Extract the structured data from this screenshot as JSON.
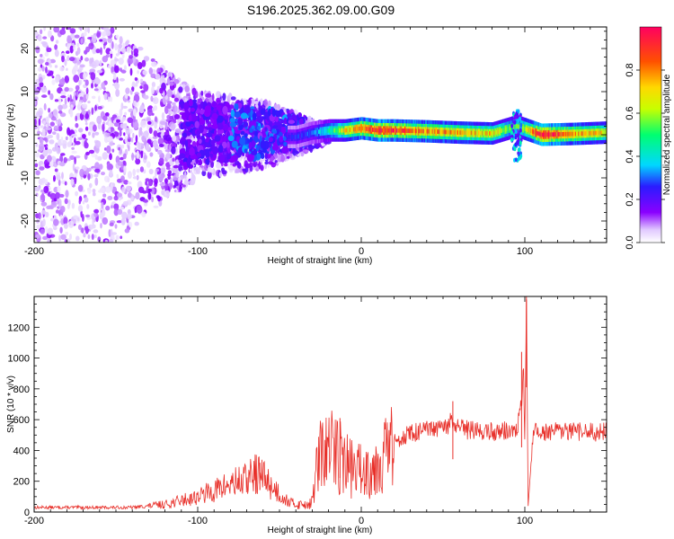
{
  "title": "S196.2025.362.09.00.G09",
  "chart_data": [
    {
      "type": "heatmap",
      "title": "S196.2025.362.09.00.G09",
      "xlabel": "Height of straight line (km)",
      "ylabel": "Frequency (Hz)",
      "xlim": [
        -200,
        150
      ],
      "ylim": [
        -25,
        25
      ],
      "xticks": [
        -200,
        -100,
        0,
        100
      ],
      "yticks": [
        -20,
        -10,
        0,
        10,
        20
      ],
      "colorbar": {
        "label": "Normalized spectral amplitude",
        "range": [
          0,
          1
        ],
        "ticks": [
          0.0,
          0.2,
          0.4,
          0.6,
          0.8
        ]
      },
      "ridge_profile": [
        {
          "height": -40,
          "freq": -0.5,
          "amp": 0.25
        },
        {
          "height": -30,
          "freq": 0.5,
          "amp": 0.3
        },
        {
          "height": -20,
          "freq": 1.0,
          "amp": 0.45
        },
        {
          "height": -10,
          "freq": 1.0,
          "amp": 0.7
        },
        {
          "height": 0,
          "freq": 1.5,
          "amp": 0.85
        },
        {
          "height": 10,
          "freq": 1.0,
          "amp": 0.95
        },
        {
          "height": 20,
          "freq": 1.0,
          "amp": 0.9
        },
        {
          "height": 40,
          "freq": 0.8,
          "amp": 0.8
        },
        {
          "height": 60,
          "freq": 0.5,
          "amp": 0.75
        },
        {
          "height": 80,
          "freq": 0.3,
          "amp": 0.7
        },
        {
          "height": 95,
          "freq": 2.0,
          "amp": 0.5
        },
        {
          "height": 110,
          "freq": 0.0,
          "amp": 1.0
        },
        {
          "height": 130,
          "freq": 0.2,
          "amp": 0.8
        },
        {
          "height": 150,
          "freq": 0.5,
          "amp": 0.7
        }
      ],
      "noise_extent": [
        {
          "height": -200,
          "freq_spread": 25,
          "amp": 0.1
        },
        {
          "height": -150,
          "freq_spread": 25,
          "amp": 0.1
        },
        {
          "height": -120,
          "freq_spread": 15,
          "amp": 0.12
        },
        {
          "height": -100,
          "freq_spread": 10,
          "amp": 0.15
        },
        {
          "height": -60,
          "freq_spread": 8,
          "amp": 0.15
        },
        {
          "height": -40,
          "freq_spread": 5,
          "amp": 0.18
        },
        {
          "height": -20,
          "freq_spread": 2,
          "amp": 0.2
        }
      ]
    },
    {
      "type": "line",
      "xlabel": "Height of straight line (km)",
      "ylabel": "SNR (10 * v/v)",
      "xlim": [
        -200,
        150
      ],
      "ylim": [
        0,
        1400
      ],
      "xticks": [
        -200,
        -100,
        0,
        100
      ],
      "yticks": [
        0,
        200,
        400,
        600,
        800,
        1000,
        1200
      ],
      "series": [
        {
          "name": "SNR",
          "color": "#e8302a",
          "x": [
            -200,
            -180,
            -160,
            -140,
            -120,
            -100,
            -90,
            -80,
            -70,
            -65,
            -60,
            -55,
            -50,
            -45,
            -40,
            -35,
            -30,
            -28,
            -25,
            -20,
            -15,
            -10,
            -5,
            0,
            5,
            10,
            15,
            20,
            25,
            30,
            40,
            50,
            55,
            60,
            70,
            80,
            90,
            95,
            98,
            99,
            100,
            101,
            102,
            105,
            110,
            120,
            130,
            140,
            150
          ],
          "y": [
            30,
            30,
            30,
            30,
            50,
            100,
            140,
            180,
            210,
            250,
            230,
            170,
            120,
            70,
            50,
            50,
            60,
            250,
            360,
            400,
            400,
            320,
            280,
            270,
            280,
            320,
            390,
            450,
            490,
            510,
            530,
            540,
            580,
            540,
            530,
            520,
            530,
            520,
            700,
            1000,
            400,
            1350,
            30,
            520,
            520,
            520,
            520,
            520,
            520
          ]
        }
      ],
      "peaks": [
        {
          "x": -62,
          "y": 320
        },
        {
          "x": -13,
          "y": 610
        },
        {
          "x": 56,
          "y": 720
        },
        {
          "x": 98,
          "y": 1040
        },
        {
          "x": 101,
          "y": 1380
        }
      ]
    }
  ]
}
